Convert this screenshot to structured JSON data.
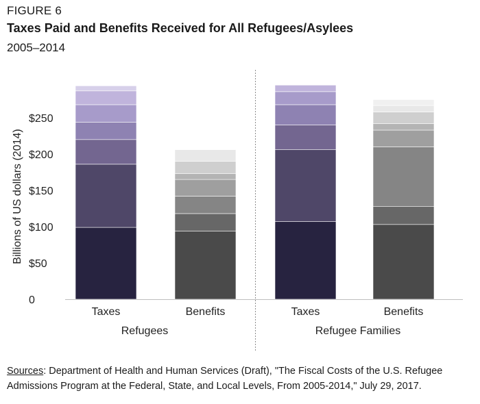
{
  "figure_label": "FIGURE 6",
  "title": "Taxes Paid and Benefits Received for All Refugees/Asylees",
  "subtitle": "2005–2014",
  "sources_label": "Sources",
  "sources_text": ": Department of Health and Human Services (Draft), \"The Fiscal Costs of the U.S. Refugee Admissions Program at the Federal, State, and Local Levels, From 2005-2014,\" July 29, 2017.",
  "chart_data": {
    "type": "bar",
    "stacked": true,
    "title": "Taxes Paid and Benefits Received for All Refugees/Asylees",
    "subtitle": "2005–2014",
    "ylabel": "Billions of US dollars (2014)",
    "ylim": [
      0,
      300
    ],
    "yticks": [
      0,
      50,
      100,
      150,
      200,
      250
    ],
    "ytick_labels": [
      "0",
      "$50",
      "$100",
      "$150",
      "$200",
      "$250"
    ],
    "grid": false,
    "groups": [
      "Refugees",
      "Refugee Families"
    ],
    "categories": [
      "Taxes",
      "Benefits",
      "Taxes",
      "Benefits"
    ],
    "bars": [
      {
        "group": "Refugees",
        "category": "Taxes",
        "segments": [
          99,
          87,
          34,
          24,
          24,
          19,
          7
        ],
        "colors": [
          "#272340",
          "#4f4768",
          "#736690",
          "#8e82b2",
          "#a79bca",
          "#c0b4dc",
          "#d7d0ea"
        ]
      },
      {
        "group": "Refugees",
        "category": "Benefits",
        "segments": [
          94,
          24,
          24,
          23,
          8,
          17,
          16
        ],
        "colors": [
          "#4a4a4a",
          "#676767",
          "#858585",
          "#9f9f9f",
          "#b4b4b4",
          "#cfcfcf",
          "#e8e8e8"
        ]
      },
      {
        "group": "Refugee Families",
        "category": "Taxes",
        "segments": [
          107,
          99,
          34,
          28,
          18,
          9
        ],
        "colors": [
          "#272340",
          "#4f4768",
          "#736690",
          "#8e82b2",
          "#a79bca",
          "#c0b4dc"
        ]
      },
      {
        "group": "Refugee Families",
        "category": "Benefits",
        "segments": [
          103,
          25,
          82,
          23,
          9,
          16,
          9,
          8
        ],
        "colors": [
          "#4a4a4a",
          "#676767",
          "#858585",
          "#9f9f9f",
          "#b4b4b4",
          "#cfcfcf",
          "#e8e8e8",
          "#f0f0f0"
        ]
      }
    ]
  }
}
